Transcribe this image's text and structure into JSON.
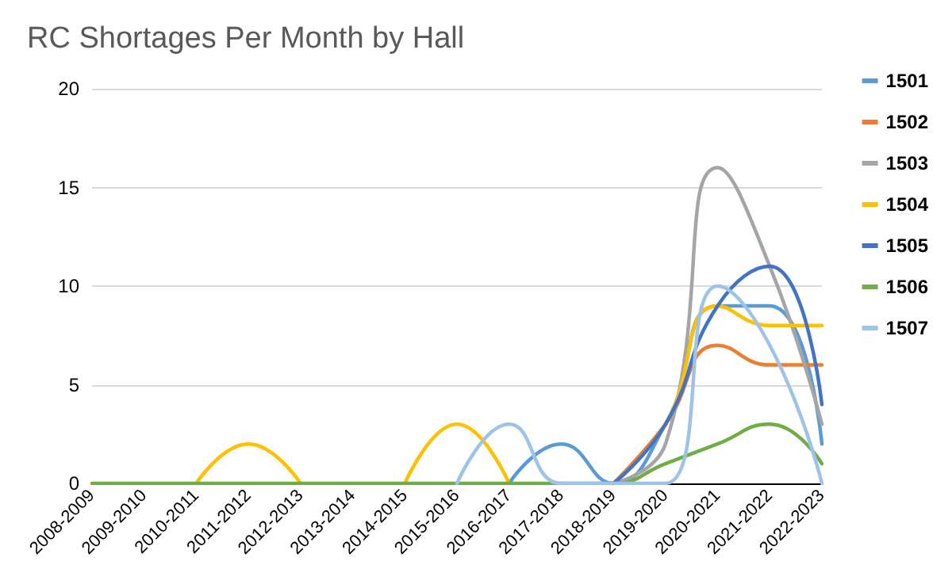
{
  "chart_data": {
    "type": "line",
    "title": "RC Shortages Per Month by Hall",
    "categories": [
      "2008-2009",
      "2009-2010",
      "2010-2011",
      "2011-2012",
      "2012-2013",
      "2013-2014",
      "2014-2015",
      "2015-2016",
      "2016-2017",
      "2017-2018",
      "2018-2019",
      "2019-2020",
      "2020-2021",
      "2021-2022",
      "2022-2023"
    ],
    "series": [
      {
        "name": "1501",
        "color": "#5b9bd5",
        "values": [
          null,
          null,
          null,
          null,
          null,
          null,
          null,
          null,
          0,
          2,
          0,
          3,
          9,
          9,
          2
        ]
      },
      {
        "name": "1502",
        "color": "#ed7d31",
        "values": [
          null,
          null,
          null,
          null,
          null,
          null,
          null,
          null,
          null,
          null,
          0,
          3,
          7,
          6,
          6
        ]
      },
      {
        "name": "1503",
        "color": "#a5a5a5",
        "values": [
          null,
          null,
          null,
          null,
          null,
          null,
          null,
          null,
          null,
          null,
          0,
          2,
          16,
          11,
          3
        ]
      },
      {
        "name": "1504",
        "color": "#ffc000",
        "values": [
          null,
          null,
          0,
          2,
          0,
          null,
          0,
          3,
          0,
          null,
          0,
          3,
          9,
          8,
          8
        ]
      },
      {
        "name": "1505",
        "color": "#4472c4",
        "values": [
          null,
          null,
          null,
          null,
          null,
          null,
          null,
          null,
          null,
          null,
          0,
          3,
          9,
          11,
          4
        ]
      },
      {
        "name": "1506",
        "color": "#70ad47",
        "values": [
          0,
          0,
          0,
          0,
          0,
          0,
          0,
          0,
          0,
          0,
          0,
          1,
          2,
          3,
          1
        ]
      },
      {
        "name": "1507",
        "color": "#9dc3e6",
        "values": [
          null,
          null,
          null,
          null,
          null,
          null,
          null,
          0,
          3,
          0,
          0,
          0,
          10,
          7,
          0
        ]
      }
    ],
    "ylim": [
      0,
      20
    ],
    "yticks": [
      0,
      5,
      10,
      15,
      20
    ],
    "grid": "y",
    "legend": "right",
    "marker": "none",
    "line_style": "solid"
  }
}
